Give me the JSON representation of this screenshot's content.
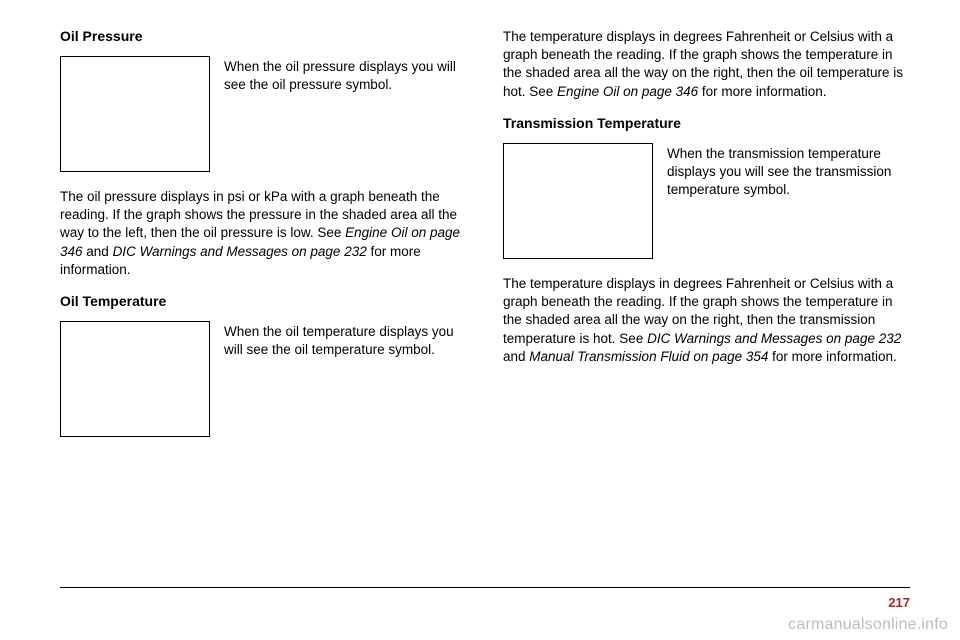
{
  "left": {
    "heading1": "Oil Pressure",
    "block1_side": "When the oil pressure displays you will see the oil pressure symbol.",
    "body1_a": "The oil pressure displays in psi or kPa with a graph beneath the reading. If the graph shows the pressure in the shaded area all the way to the left, then the oil pressure is low. See ",
    "body1_i1": "Engine Oil on page 346",
    "body1_b": " and ",
    "body1_i2": "DIC Warnings and Messages on page 232",
    "body1_c": " for more information.",
    "heading2": "Oil Temperature",
    "block2_side": "When the oil temperature displays you will see the oil temperature symbol."
  },
  "right": {
    "body1_a": "The temperature displays in degrees Fahrenheit or Celsius with a graph beneath the reading. If the graph shows the temperature in the shaded area all the way on the right, then the oil temperature is hot. See ",
    "body1_i1": "Engine Oil on page 346",
    "body1_b": " for more information.",
    "heading1": "Transmission Temperature",
    "block1_side": "When the transmission temperature displays you will see the transmission temperature symbol.",
    "body2_a": "The temperature displays in degrees Fahrenheit or Celsius with a graph beneath the reading. If the graph shows the temperature in the shaded area all the way on the right, then the transmission temperature is hot. See ",
    "body2_i1": "DIC Warnings and Messages on page 232",
    "body2_b": " and ",
    "body2_i2": "Manual Transmission Fluid on page 354",
    "body2_c": " for more information."
  },
  "page_number": "217",
  "watermark": "carmanualsonline.info"
}
